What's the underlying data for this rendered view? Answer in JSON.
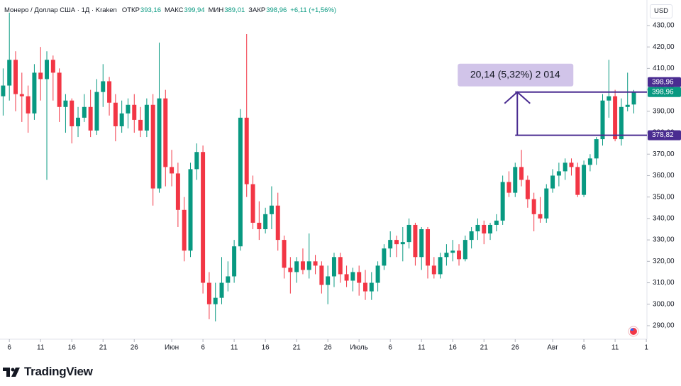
{
  "legend": {
    "symbol": "Монеро / Доллар США · 1Д · Kraken",
    "fields": [
      {
        "label": "ОТКР",
        "value": "393,16"
      },
      {
        "label": "МАКС",
        "value": "399,94"
      },
      {
        "label": "МИН",
        "value": "389,01"
      },
      {
        "label": "ЗАКР",
        "value": "398,96"
      }
    ],
    "change": "+6,11 (+1,56%)"
  },
  "currency": "USD",
  "brand": "TradingView",
  "chart_data": {
    "type": "candlestick",
    "up_color": "#089981",
    "down_color": "#f23645",
    "open": [
      397,
      402,
      414,
      398,
      397,
      389,
      408,
      405,
      414,
      408,
      392,
      395,
      383,
      387,
      392,
      381,
      399,
      404,
      394,
      383,
      389,
      393,
      386,
      381,
      393,
      354,
      396,
      364,
      361,
      344,
      325,
      363,
      371,
      310,
      300,
      303,
      310,
      313,
      327,
      387,
      356,
      338,
      335,
      342,
      346,
      330,
      317,
      315,
      320,
      316,
      320,
      318,
      309,
      313,
      322,
      314,
      311,
      315,
      310,
      306,
      310,
      318,
      326,
      330,
      328,
      329,
      337,
      322,
      335,
      318,
      314,
      322,
      324,
      325,
      321,
      330,
      334,
      337,
      333,
      337,
      339,
      357,
      352,
      364,
      358,
      349,
      342,
      340,
      354,
      360,
      362,
      366,
      364,
      351,
      365,
      368,
      377,
      395,
      397,
      377,
      392,
      393.16
    ],
    "high": [
      410,
      436,
      418,
      408,
      402,
      412,
      420,
      418,
      416,
      410,
      398,
      396,
      392,
      398,
      400,
      405,
      412,
      406,
      398,
      395,
      396,
      398,
      392,
      396,
      398,
      422,
      400,
      372,
      366,
      350,
      366,
      375,
      374,
      315,
      310,
      322,
      320,
      330,
      391,
      426,
      360,
      348,
      345,
      355,
      352,
      332,
      322,
      322,
      326,
      333,
      323,
      320,
      318,
      324,
      324,
      318,
      317,
      318,
      316,
      315,
      320,
      328,
      334,
      332,
      336,
      340,
      338,
      336,
      336,
      322,
      324,
      328,
      330,
      328,
      332,
      336,
      340,
      339,
      338,
      342,
      360,
      362,
      366,
      372,
      360,
      352,
      350,
      356,
      363,
      366,
      368,
      368,
      366,
      367,
      370,
      378,
      398,
      414,
      400,
      396,
      408,
      399.94
    ],
    "low": [
      388,
      395,
      390,
      385,
      380,
      386,
      395,
      358,
      395,
      385,
      380,
      375,
      378,
      385,
      378,
      379,
      392,
      388,
      376,
      380,
      382,
      380,
      378,
      378,
      346,
      352,
      355,
      355,
      336,
      320,
      322,
      358,
      305,
      293,
      292,
      300,
      306,
      310,
      325,
      350,
      335,
      330,
      333,
      335,
      325,
      312,
      305,
      310,
      314,
      312,
      314,
      305,
      300,
      308,
      310,
      308,
      306,
      304,
      302,
      302,
      306,
      316,
      322,
      322,
      320,
      326,
      318,
      316,
      312,
      312,
      312,
      318,
      320,
      318,
      320,
      326,
      330,
      328,
      330,
      334,
      337,
      350,
      350,
      355,
      345,
      334,
      338,
      338,
      352,
      355,
      358,
      360,
      350,
      350,
      362,
      365,
      374,
      387,
      376,
      374,
      390,
      389.01
    ],
    "close": [
      402,
      414,
      398,
      397,
      389,
      408,
      405,
      414,
      408,
      392,
      395,
      383,
      387,
      392,
      381,
      399,
      404,
      394,
      383,
      389,
      393,
      386,
      381,
      393,
      354,
      396,
      364,
      361,
      344,
      325,
      363,
      371,
      310,
      300,
      303,
      310,
      313,
      327,
      387,
      356,
      338,
      335,
      342,
      346,
      330,
      317,
      315,
      320,
      316,
      320,
      318,
      309,
      313,
      322,
      314,
      311,
      315,
      310,
      306,
      310,
      318,
      326,
      330,
      328,
      329,
      337,
      322,
      335,
      318,
      314,
      322,
      324,
      325,
      321,
      330,
      334,
      337,
      333,
      337,
      339,
      357,
      352,
      364,
      358,
      349,
      342,
      340,
      354,
      360,
      362,
      366,
      364,
      351,
      365,
      368,
      377,
      395,
      397,
      377,
      392,
      393,
      398.96
    ],
    "xlim": [
      -0.5,
      103.1
    ],
    "xticks": [
      {
        "value": 1,
        "label": "6"
      },
      {
        "value": 6,
        "label": "11"
      },
      {
        "value": 11,
        "label": "16"
      },
      {
        "value": 16,
        "label": "21"
      },
      {
        "value": 21,
        "label": "26"
      },
      {
        "value": 27,
        "label": "Июн"
      },
      {
        "value": 32,
        "label": "6"
      },
      {
        "value": 37,
        "label": "11"
      },
      {
        "value": 42,
        "label": "16"
      },
      {
        "value": 47,
        "label": "21"
      },
      {
        "value": 52,
        "label": "26"
      },
      {
        "value": 57,
        "label": "Июль"
      },
      {
        "value": 62,
        "label": "6"
      },
      {
        "value": 67,
        "label": "11"
      },
      {
        "value": 72,
        "label": "16"
      },
      {
        "value": 77,
        "label": "21"
      },
      {
        "value": 82,
        "label": "26"
      },
      {
        "value": 88,
        "label": "Авг"
      },
      {
        "value": 93,
        "label": "6"
      },
      {
        "value": 98,
        "label": "11"
      },
      {
        "value": 103,
        "label": "1"
      }
    ],
    "ylim": [
      283.7,
      441.9
    ],
    "yticks": [
      {
        "value": 290,
        "label": "290,00"
      },
      {
        "value": 300,
        "label": "300,00"
      },
      {
        "value": 310,
        "label": "310,00"
      },
      {
        "value": 320,
        "label": "320,00"
      },
      {
        "value": 330,
        "label": "330,00"
      },
      {
        "value": 340,
        "label": "340,00"
      },
      {
        "value": 350,
        "label": "350,00"
      },
      {
        "value": 360,
        "label": "360,00"
      },
      {
        "value": 370,
        "label": "370,00"
      },
      {
        "value": 380,
        "label": "380,00"
      },
      {
        "value": 390,
        "label": "390,00"
      },
      {
        "value": 400,
        "label": "400,00"
      },
      {
        "value": 410,
        "label": "410,00"
      },
      {
        "value": 420,
        "label": "420,00"
      },
      {
        "value": 430,
        "label": "430,00"
      }
    ],
    "grid": false,
    "measure": {
      "x_start": 82,
      "from": 378.82,
      "to": 398.96,
      "from_label": "378,82",
      "to_label": "398,96",
      "text": "20,14 (5,32%) 2 014",
      "color": "#4a2c91"
    },
    "last_price": {
      "value": 398.96,
      "label": "398,96"
    }
  }
}
